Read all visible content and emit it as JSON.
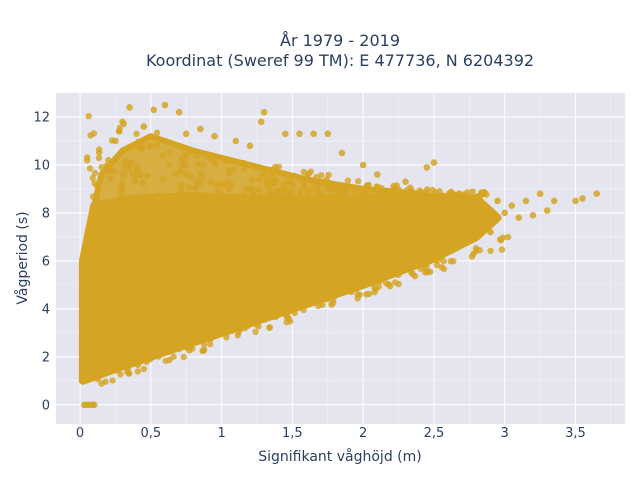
{
  "chart_data": {
    "type": "scatter",
    "title_line1": "År 1979 - 2019",
    "title_line2": "Koordinat (Sweref 99 TM): E 477736, N 6204392",
    "xlabel": "Signifikant våghöjd (m)",
    "ylabel": "Vågperiod (s)",
    "xlim": [
      -0.17,
      3.85
    ],
    "ylim": [
      -0.8,
      13.0
    ],
    "x_ticks": [
      0,
      0.5,
      1,
      1.5,
      2,
      2.5,
      3,
      3.5
    ],
    "x_tick_labels": [
      "0",
      "0,5",
      "1",
      "1,5",
      "2",
      "2,5",
      "3",
      "3,5"
    ],
    "y_ticks": [
      0,
      2,
      4,
      6,
      8,
      10,
      12
    ],
    "y_tick_labels": [
      "0",
      "2",
      "4",
      "6",
      "8",
      "10",
      "12"
    ],
    "grid": true,
    "legend": "none",
    "series": [
      {
        "color": "#d4a422",
        "points": [
          [
            0.03,
            0.0
          ],
          [
            0.05,
            0.0
          ],
          [
            0.07,
            0.0
          ],
          [
            0.09,
            0.0
          ],
          [
            0.1,
            0.0
          ],
          [
            0.02,
            1.2
          ],
          [
            0.04,
            1.5
          ],
          [
            0.05,
            2.6
          ],
          [
            0.06,
            3.2
          ],
          [
            0.08,
            3.8
          ],
          [
            0.1,
            1.3
          ],
          [
            0.12,
            1.8
          ],
          [
            0.15,
            2.3
          ],
          [
            0.3,
            2.0
          ],
          [
            0.5,
            2.4
          ],
          [
            0.8,
            3.0
          ],
          [
            1.0,
            3.5
          ],
          [
            1.3,
            4.2
          ],
          [
            1.6,
            4.7
          ],
          [
            1.9,
            5.1
          ],
          [
            2.2,
            5.6
          ],
          [
            2.5,
            6.3
          ],
          [
            2.7,
            6.9
          ],
          [
            2.9,
            7.5
          ],
          [
            3.1,
            7.8
          ],
          [
            0.15,
            9.5
          ],
          [
            0.2,
            10.2
          ],
          [
            0.25,
            11.0
          ],
          [
            0.3,
            11.8
          ],
          [
            0.35,
            12.4
          ],
          [
            0.45,
            11.6
          ],
          [
            0.52,
            12.3
          ],
          [
            0.6,
            12.5
          ],
          [
            0.7,
            12.2
          ],
          [
            0.75,
            11.3
          ],
          [
            0.85,
            11.5
          ],
          [
            0.95,
            11.2
          ],
          [
            1.1,
            11.0
          ],
          [
            1.2,
            10.8
          ],
          [
            1.28,
            11.8
          ],
          [
            1.3,
            12.2
          ],
          [
            1.45,
            11.3
          ],
          [
            1.55,
            11.3
          ],
          [
            1.65,
            11.3
          ],
          [
            1.75,
            11.3
          ],
          [
            1.85,
            10.5
          ],
          [
            2.0,
            10.0
          ],
          [
            2.1,
            9.6
          ],
          [
            2.3,
            9.3
          ],
          [
            2.45,
            9.9
          ],
          [
            2.5,
            10.1
          ],
          [
            2.7,
            8.7
          ],
          [
            2.85,
            8.8
          ],
          [
            2.95,
            8.5
          ],
          [
            3.0,
            8.0
          ],
          [
            3.15,
            8.5
          ],
          [
            3.25,
            8.8
          ],
          [
            3.35,
            8.5
          ],
          [
            3.5,
            8.5
          ],
          [
            3.55,
            8.6
          ],
          [
            3.65,
            8.8
          ],
          [
            3.3,
            8.1
          ],
          [
            3.2,
            7.9
          ],
          [
            3.05,
            8.3
          ],
          [
            2.9,
            7.2
          ]
        ]
      }
    ]
  }
}
